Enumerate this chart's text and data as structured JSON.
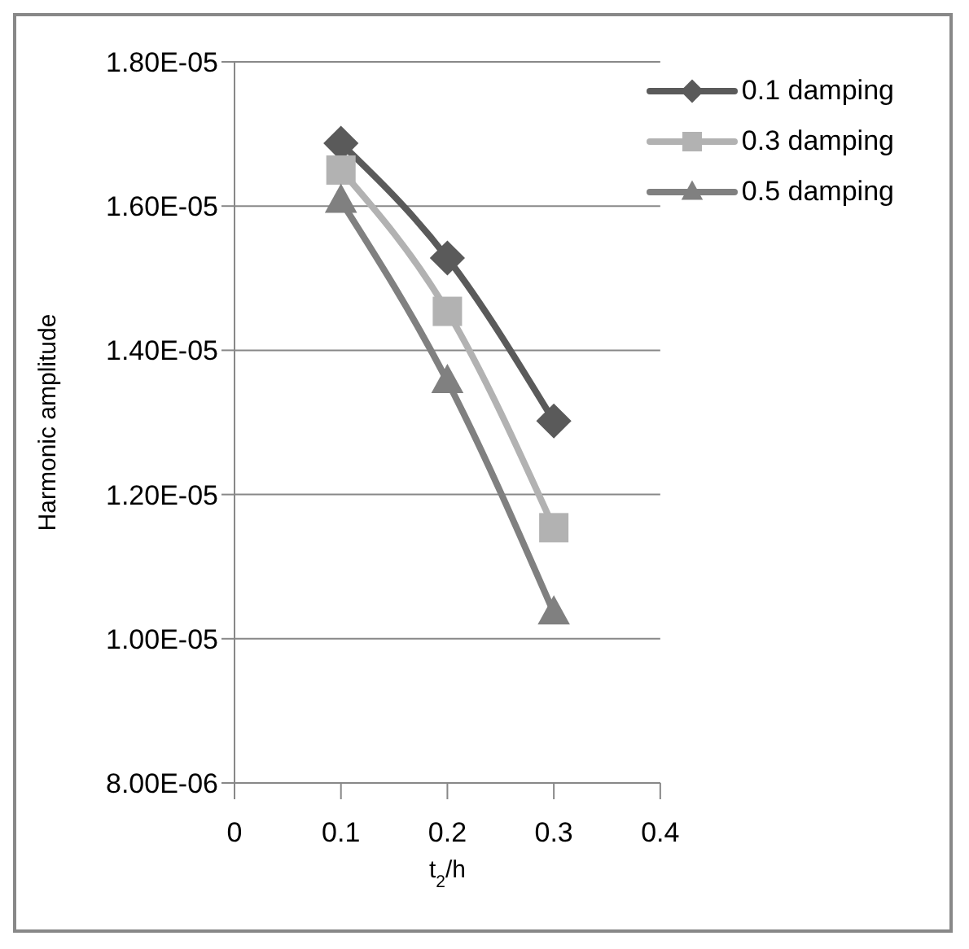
{
  "chart_data": {
    "type": "line",
    "xlabel": "t$_{2}$/h",
    "ylabel": "Harmonic amplitude",
    "x": [
      0.1,
      0.2,
      0.3
    ],
    "series": [
      {
        "name": "0.1 damping",
        "color": "#5a5a5a",
        "marker": "diamond",
        "values": [
          1.687e-05,
          1.528e-05,
          1.302e-05
        ]
      },
      {
        "name": "0.3 damping",
        "color": "#b2b2b2",
        "marker": "square",
        "values": [
          1.65e-05,
          1.454e-05,
          1.154e-05
        ]
      },
      {
        "name": "0.5 damping",
        "color": "#808080",
        "marker": "triangle",
        "values": [
          1.607e-05,
          1.357e-05,
          1.036e-05
        ]
      }
    ],
    "xlim": [
      0,
      0.4
    ],
    "xticks": [
      0,
      0.1,
      0.2,
      0.3,
      0.4
    ],
    "ylim": [
      8e-06,
      1.8e-05
    ],
    "yticks": [
      {
        "value": 8e-06,
        "label": "8.00E-06"
      },
      {
        "value": 1e-05,
        "label": "1.00E-05"
      },
      {
        "value": 1.2e-05,
        "label": "1.20E-05"
      },
      {
        "value": 1.4e-05,
        "label": "1.40E-05"
      },
      {
        "value": 1.6e-05,
        "label": "1.60E-05"
      },
      {
        "value": 1.8e-05,
        "label": "1.80E-05"
      }
    ],
    "grid": "y",
    "legend": "top right"
  }
}
